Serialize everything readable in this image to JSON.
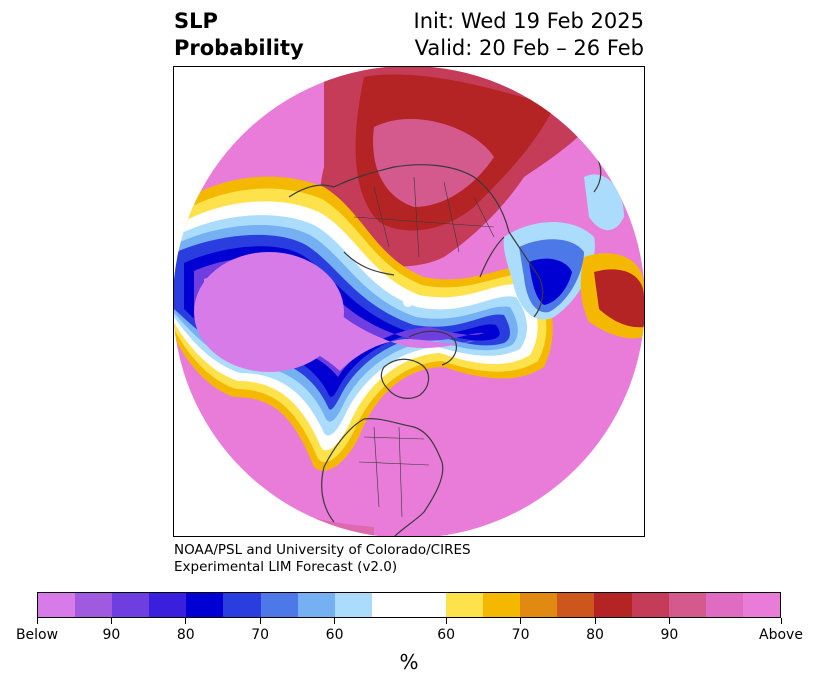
{
  "title": {
    "left_line1": "SLP",
    "left_line2": "Probability",
    "right_line1": "Init: Wed 19 Feb 2025",
    "right_line2": "Valid: 20 Feb – 26 Feb"
  },
  "credit": {
    "line1": "NOAA/PSL and University of Colorado/CIRES",
    "line2": "Experimental LIM Forecast (v2.0)"
  },
  "colorbar": {
    "unit": "%",
    "colors": [
      "#d77be8",
      "#a05ae0",
      "#6f3ee0",
      "#3a1fdc",
      "#0000d2",
      "#2a3ee0",
      "#4d78e8",
      "#74b0f2",
      "#acdcfb",
      "#ffffff",
      "#fde24c",
      "#f5b800",
      "#e08a12",
      "#cc561c",
      "#b52424",
      "#c43c58",
      "#d45a8e",
      "#e06cc2",
      "#e87cd8"
    ],
    "tick_labels": [
      "Below",
      "90",
      "80",
      "70",
      "60",
      "60",
      "70",
      "80",
      "90",
      "Above"
    ]
  },
  "map": {
    "projection": "polar-stereographic-north",
    "colors": {
      "below_strong": "#d77be8",
      "below_mid": "#0000d2",
      "below_weak": "#acdcfb",
      "neutral": "#ffffff",
      "above_weak": "#fde24c",
      "above_mid": "#b52424",
      "above_strong": "#e87cd8",
      "coast": "#3a3a3a"
    }
  }
}
